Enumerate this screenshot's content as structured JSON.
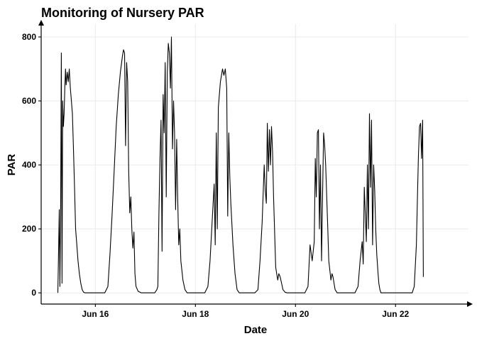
{
  "chart_data": {
    "type": "line",
    "title": "Monitoring of Nursery PAR",
    "xlabel": "Date",
    "ylabel": "PAR",
    "x_type": "date",
    "x_range": [
      "2022-06-14T22:00",
      "2022-06-23T11:00"
    ],
    "ylim": [
      -35,
      840
    ],
    "x_ticks": [
      {
        "value": "2022-06-16T00:00",
        "label": "Jun 16"
      },
      {
        "value": "2022-06-18T00:00",
        "label": "Jun 18"
      },
      {
        "value": "2022-06-20T00:00",
        "label": "Jun 20"
      },
      {
        "value": "2022-06-22T00:00",
        "label": "Jun 22"
      }
    ],
    "y_ticks": [
      0,
      200,
      400,
      600,
      800
    ],
    "grid": true,
    "legend": "none",
    "series_color": "#000000",
    "series": [
      {
        "x": [
          "2022-06-15T06:00",
          "2022-06-15T06:40",
          "2022-06-15T07:00",
          "2022-06-15T07:20",
          "2022-06-15T07:40",
          "2022-06-15T08:00",
          "2022-06-15T08:20",
          "2022-06-15T08:40",
          "2022-06-15T09:00",
          "2022-06-15T09:20",
          "2022-06-15T09:40",
          "2022-06-15T10:00",
          "2022-06-15T10:30",
          "2022-06-15T11:00",
          "2022-06-15T11:30",
          "2022-06-15T12:00",
          "2022-06-15T12:30",
          "2022-06-15T13:00",
          "2022-06-15T13:30",
          "2022-06-15T14:00",
          "2022-06-15T14:30",
          "2022-06-15T15:00",
          "2022-06-15T15:40",
          "2022-06-15T16:20",
          "2022-06-15T17:00",
          "2022-06-15T17:40",
          "2022-06-15T18:20",
          "2022-06-15T19:00",
          "2022-06-15T20:00",
          "2022-06-15T21:00",
          "2022-06-16T04:30",
          "2022-06-16T06:00",
          "2022-06-16T07:00",
          "2022-06-16T08:00",
          "2022-06-16T09:00",
          "2022-06-16T10:00",
          "2022-06-16T11:00",
          "2022-06-16T12:00",
          "2022-06-16T13:00",
          "2022-06-16T13:30",
          "2022-06-16T14:00",
          "2022-06-16T14:30",
          "2022-06-16T15:00",
          "2022-06-16T15:30",
          "2022-06-16T16:00",
          "2022-06-16T16:30",
          "2022-06-16T17:00",
          "2022-06-16T17:30",
          "2022-06-16T18:00",
          "2022-06-16T18:30",
          "2022-06-16T19:00",
          "2022-06-16T19:30",
          "2022-06-16T20:30",
          "2022-06-16T22:00",
          "2022-06-17T04:30",
          "2022-06-17T05:30",
          "2022-06-17T06:00",
          "2022-06-17T06:30",
          "2022-06-17T07:00",
          "2022-06-17T07:30",
          "2022-06-17T08:00",
          "2022-06-17T08:30",
          "2022-06-17T09:00",
          "2022-06-17T09:30",
          "2022-06-17T10:00",
          "2022-06-17T10:30",
          "2022-06-17T11:00",
          "2022-06-17T11:30",
          "2022-06-17T12:00",
          "2022-06-17T12:30",
          "2022-06-17T13:00",
          "2022-06-17T13:30",
          "2022-06-17T14:00",
          "2022-06-17T14:30",
          "2022-06-17T15:00",
          "2022-06-17T15:30",
          "2022-06-17T16:00",
          "2022-06-17T16:30",
          "2022-06-17T17:00",
          "2022-06-17T18:00",
          "2022-06-17T19:00",
          "2022-06-17T20:00",
          "2022-06-17T21:00",
          "2022-06-18T04:30",
          "2022-06-18T06:00",
          "2022-06-18T07:00",
          "2022-06-18T08:00",
          "2022-06-18T09:00",
          "2022-06-18T09:30",
          "2022-06-18T10:00",
          "2022-06-18T10:30",
          "2022-06-18T11:00",
          "2022-06-18T12:00",
          "2022-06-18T13:00",
          "2022-06-18T13:40",
          "2022-06-18T14:20",
          "2022-06-18T15:00",
          "2022-06-18T15:30",
          "2022-06-18T16:00",
          "2022-06-18T16:30",
          "2022-06-18T17:00",
          "2022-06-18T18:00",
          "2022-06-18T19:00",
          "2022-06-18T20:00",
          "2022-06-18T21:00",
          "2022-06-19T04:30",
          "2022-06-19T06:00",
          "2022-06-19T07:00",
          "2022-06-19T08:00",
          "2022-06-19T09:00",
          "2022-06-19T09:30",
          "2022-06-19T10:00",
          "2022-06-19T10:30",
          "2022-06-19T11:00",
          "2022-06-19T11:30",
          "2022-06-19T12:00",
          "2022-06-19T12:30",
          "2022-06-19T13:00",
          "2022-06-19T13:30",
          "2022-06-19T14:00",
          "2022-06-19T14:30",
          "2022-06-19T15:00",
          "2022-06-19T15:30",
          "2022-06-19T16:00",
          "2022-06-19T16:40",
          "2022-06-19T17:20",
          "2022-06-19T18:00",
          "2022-06-19T19:00",
          "2022-06-19T20:00",
          "2022-06-19T21:00",
          "2022-06-20T04:30",
          "2022-06-20T06:00",
          "2022-06-20T07:00",
          "2022-06-20T08:00",
          "2022-06-20T09:00",
          "2022-06-20T09:30",
          "2022-06-20T10:00",
          "2022-06-20T10:30",
          "2022-06-20T11:00",
          "2022-06-20T11:30",
          "2022-06-20T12:00",
          "2022-06-20T12:30",
          "2022-06-20T13:00",
          "2022-06-20T13:30",
          "2022-06-20T14:00",
          "2022-06-20T14:30",
          "2022-06-20T15:00",
          "2022-06-20T15:30",
          "2022-06-20T16:00",
          "2022-06-20T16:30",
          "2022-06-20T17:00",
          "2022-06-20T17:30",
          "2022-06-20T18:00",
          "2022-06-20T18:30",
          "2022-06-20T19:00",
          "2022-06-20T20:00",
          "2022-06-20T21:00",
          "2022-06-21T04:30",
          "2022-06-21T06:00",
          "2022-06-21T07:00",
          "2022-06-21T08:00",
          "2022-06-21T08:30",
          "2022-06-21T09:00",
          "2022-06-21T09:30",
          "2022-06-21T10:00",
          "2022-06-21T10:30",
          "2022-06-21T11:00",
          "2022-06-21T11:30",
          "2022-06-21T12:00",
          "2022-06-21T12:30",
          "2022-06-21T13:00",
          "2022-06-21T13:30",
          "2022-06-21T14:00",
          "2022-06-21T14:30",
          "2022-06-21T15:00",
          "2022-06-21T15:30",
          "2022-06-21T16:00",
          "2022-06-21T16:30",
          "2022-06-21T17:00",
          "2022-06-21T17:30",
          "2022-06-21T18:00",
          "2022-06-21T18:30",
          "2022-06-21T19:00",
          "2022-06-21T20:00",
          "2022-06-21T21:00",
          "2022-06-22T04:30",
          "2022-06-22T06:00",
          "2022-06-22T07:00",
          "2022-06-22T08:00",
          "2022-06-22T09:00",
          "2022-06-22T10:00",
          "2022-06-22T10:30",
          "2022-06-22T11:00",
          "2022-06-22T11:30",
          "2022-06-22T12:00",
          "2022-06-22T12:30",
          "2022-06-22T13:00",
          "2022-06-22T13:20"
        ],
        "values": [
          0,
          260,
          20,
          250,
          750,
          30,
          600,
          520,
          560,
          640,
          700,
          650,
          690,
          660,
          700,
          640,
          600,
          560,
          450,
          330,
          200,
          160,
          100,
          60,
          30,
          10,
          2,
          0,
          0,
          0,
          0,
          20,
          120,
          240,
          380,
          520,
          620,
          690,
          740,
          760,
          750,
          460,
          720,
          660,
          380,
          250,
          300,
          200,
          140,
          190,
          60,
          20,
          5,
          0,
          0,
          10,
          20,
          250,
          420,
          540,
          130,
          620,
          500,
          720,
          300,
          690,
          780,
          750,
          640,
          800,
          450,
          600,
          500,
          260,
          480,
          300,
          150,
          200,
          100,
          40,
          10,
          0,
          0,
          0,
          20,
          100,
          220,
          340,
          150,
          500,
          200,
          580,
          660,
          700,
          680,
          700,
          640,
          240,
          500,
          360,
          280,
          150,
          60,
          10,
          0,
          0,
          10,
          100,
          220,
          400,
          320,
          280,
          530,
          380,
          510,
          400,
          520,
          440,
          300,
          190,
          80,
          60,
          40,
          60,
          50,
          30,
          10,
          2,
          0,
          0,
          0,
          20,
          150,
          100,
          160,
          420,
          300,
          500,
          510,
          200,
          400,
          100,
          300,
          500,
          460,
          400,
          300,
          200,
          100,
          70,
          40,
          60,
          50,
          30,
          10,
          0,
          0,
          0,
          20,
          100,
          160,
          90,
          330,
          250,
          160,
          400,
          200,
          560,
          330,
          540,
          150,
          400,
          320,
          200,
          120,
          70,
          30,
          10,
          0,
          0,
          0,
          0,
          0,
          0,
          0,
          0,
          0,
          0,
          0,
          20,
          150,
          300,
          430,
          520,
          530,
          420,
          540,
          50
        ]
      }
    ]
  }
}
